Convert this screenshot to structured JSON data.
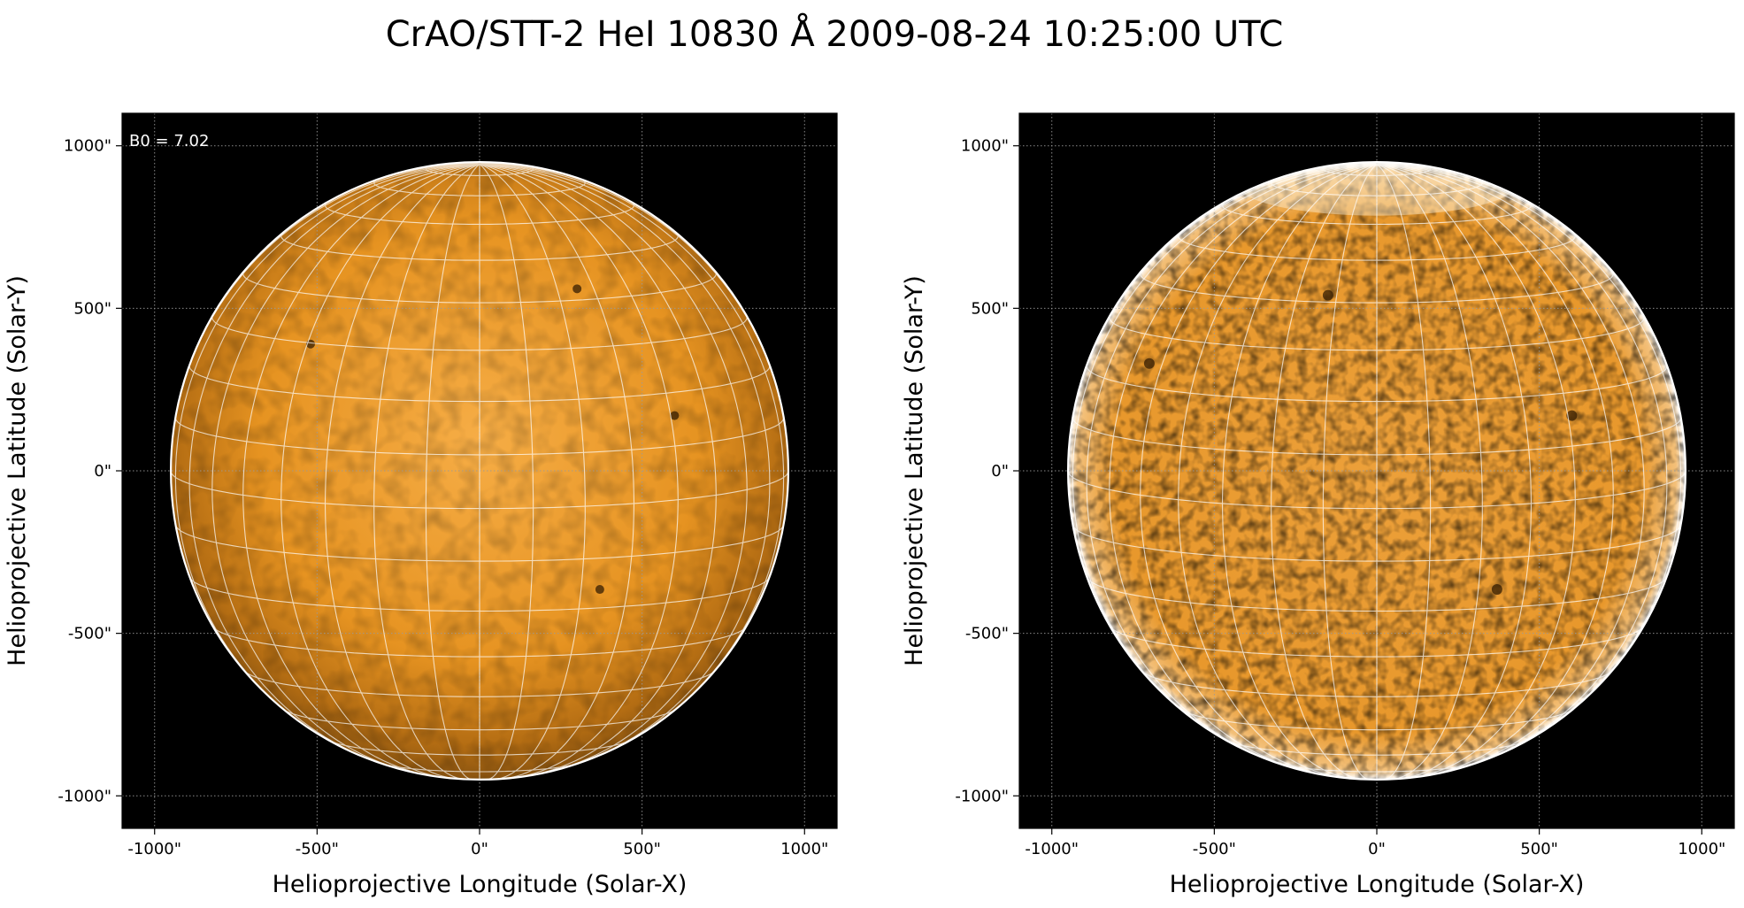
{
  "figure": {
    "title": "CrAO/STT-2 HeI 10830 Å 2009-08-24 10:25:00 UTC"
  },
  "colors": {
    "background": "#000000",
    "disk_center": "#f6ad46",
    "disk_mid": "#e69321",
    "disk_limb": "#8a5410",
    "grid": "#ffffff",
    "axis_grid": "#9a9a9a",
    "text": "#000000"
  },
  "chart_data": [
    {
      "type": "image",
      "panel": "left",
      "xlabel": "Helioprojective Longitude (Solar-X)",
      "ylabel": "Helioprojective Latitude (Solar-Y)",
      "xlim": [
        -1100,
        1100
      ],
      "ylim": [
        -1100,
        1100
      ],
      "xticks": [
        -1000,
        -500,
        0,
        500,
        1000
      ],
      "yticks": [
        -1000,
        -500,
        0,
        500,
        1000
      ],
      "xtick_labels": [
        "-1000\"",
        "-500\"",
        "0\"",
        "500\"",
        "1000\""
      ],
      "ytick_labels": [
        "-1000\"",
        "-500\"",
        "0\"",
        "500\"",
        "1000\""
      ],
      "annotation": "B0 = 7.02",
      "solar_radius_arcsec": 950,
      "heliographic_grid_step_deg": 10,
      "b0_deg": 7.02,
      "limb_darkening": true,
      "grid": true,
      "dark_features": [
        {
          "x": 370,
          "y": -365
        },
        {
          "x": -520,
          "y": 390
        },
        {
          "x": 300,
          "y": 560
        },
        {
          "x": 600,
          "y": 170
        }
      ]
    },
    {
      "type": "image",
      "panel": "right",
      "xlabel": "Helioprojective Longitude (Solar-X)",
      "ylabel": "Helioprojective Latitude (Solar-Y)",
      "xlim": [
        -1100,
        1100
      ],
      "ylim": [
        -1100,
        1100
      ],
      "xticks": [
        -1000,
        -500,
        0,
        500,
        1000
      ],
      "yticks": [
        -1000,
        -500,
        0,
        500,
        1000
      ],
      "xtick_labels": [
        "-1000\"",
        "-500\"",
        "0\"",
        "500\"",
        "1000\""
      ],
      "ytick_labels": [
        "-1000\"",
        "-500\"",
        "0\"",
        "500\"",
        "1000\""
      ],
      "solar_radius_arcsec": 950,
      "heliographic_grid_step_deg": 10,
      "b0_deg": 7.02,
      "limb_darkening": false,
      "grid": true,
      "dark_features": [
        {
          "x": 370,
          "y": -365
        },
        {
          "x": -700,
          "y": 330
        },
        {
          "x": 600,
          "y": 170
        },
        {
          "x": -150,
          "y": 540
        }
      ]
    }
  ]
}
